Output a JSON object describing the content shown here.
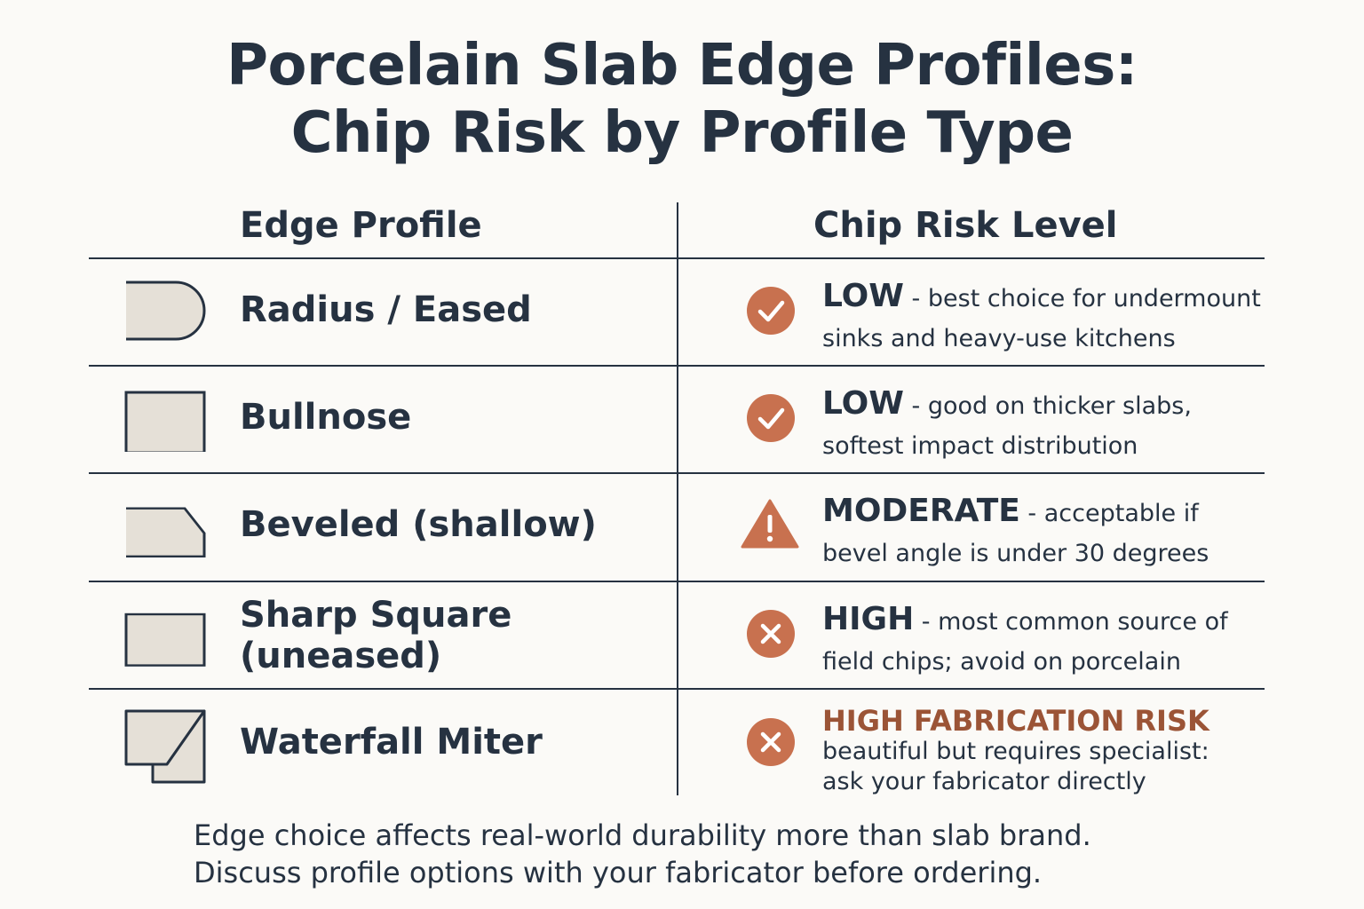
{
  "title": {
    "line1": "Porcelain Slab Edge Profiles:",
    "line2": "Chip Risk by Profile Type"
  },
  "headers": {
    "left": "Edge Profile",
    "right": "Chip Risk Level"
  },
  "colors": {
    "text": "#263241",
    "accent": "#c8714f",
    "shape_fill": "#e5e0d7",
    "fabrication_risk": "#9b5436"
  },
  "rows": [
    {
      "profile": "Radius / Eased",
      "icon": "check-icon",
      "level": "LOW",
      "desc_line1": " - best choice for undermount",
      "desc_line2": "sinks and heavy-use kitchens"
    },
    {
      "profile": "Bullnose",
      "icon": "check-icon",
      "level": "LOW",
      "desc_line1": " - good on thicker slabs,",
      "desc_line2": "softest impact distribution"
    },
    {
      "profile": "Beveled (shallow)",
      "icon": "warning-icon",
      "level": "MODERATE",
      "desc_line1": " - acceptable if",
      "desc_line2": "bevel angle is under 30 degrees"
    },
    {
      "profile_line1": "Sharp Square",
      "profile_line2": "(uneased)",
      "icon": "x-icon",
      "level": "HIGH",
      "desc_line1": " - most common source of",
      "desc_line2": "field chips; avoid on porcelain"
    },
    {
      "profile": "Waterfall Miter",
      "icon": "x-icon",
      "level": "HIGH FABRICATION RISK",
      "desc_line1": "beautiful but requires specialist:",
      "desc_line2": "ask your fabricator directly"
    }
  ],
  "footer": {
    "line1": "Edge choice affects real-world durability more than slab brand.",
    "line2": "Discuss profile options with your fabricator before ordering."
  }
}
